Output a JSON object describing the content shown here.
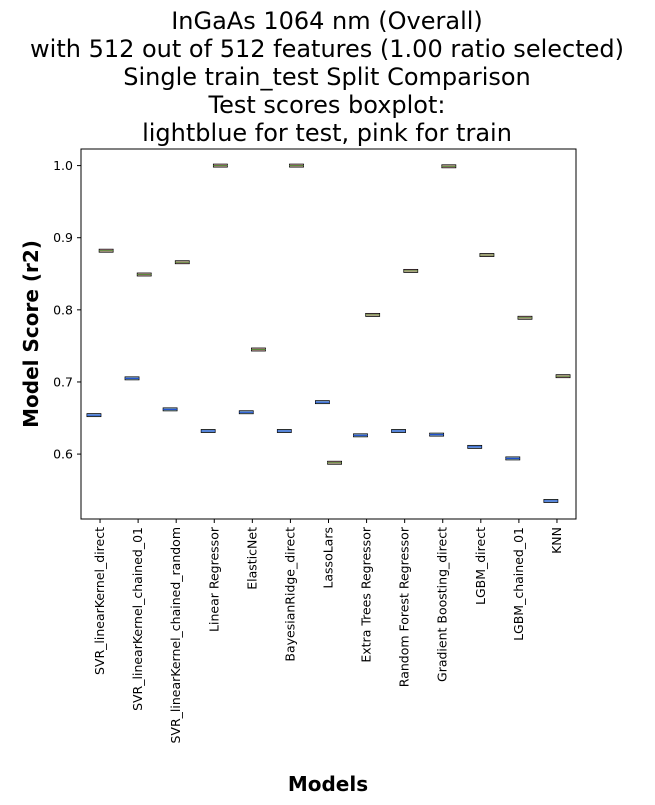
{
  "chart_data": {
    "type": "boxplot",
    "title_lines": [
      "InGaAs 1064 nm (Overall)",
      "with 512 out of 512 features (1.00 ratio selected)",
      "Single train_test Split Comparison",
      "Test scores boxplot:",
      "lightblue for test, pink for train"
    ],
    "xlabel": "Models",
    "ylabel": "Model Score (r2)",
    "ylim": [
      0.51,
      1.023
    ],
    "yticks": [
      0.6,
      0.7,
      0.8,
      0.9,
      1.0
    ],
    "ytick_labels": [
      "0.6",
      "0.7",
      "0.8",
      "0.9",
      "1.0"
    ],
    "categories": [
      "SVR_linearKernel_direct",
      "SVR_linearKernel_chained_01",
      "SVR_linearKernel_chained_random",
      "Linear Regressor",
      "ElasticNet",
      "BayesianRidge_direct",
      "LassoLars",
      "Extra Trees Regressor",
      "Random Forest Regressor",
      "Gradient Boosting_direct",
      "LGBM_direct",
      "LGBM_chained_01",
      "KNN"
    ],
    "series": [
      {
        "name": "test",
        "color": "#add8e6",
        "median_color": "#1f4fcf",
        "values": [
          0.654,
          0.705,
          0.662,
          0.632,
          0.658,
          0.632,
          0.672,
          0.626,
          0.632,
          0.627,
          0.61,
          0.594,
          0.535
        ]
      },
      {
        "name": "train",
        "color": "#ffc0cb",
        "median_color": "#5a8a3a",
        "values": [
          0.882,
          0.849,
          0.866,
          1.0,
          0.745,
          1.0,
          0.588,
          0.793,
          0.854,
          0.999,
          0.876,
          0.789,
          0.708
        ]
      }
    ],
    "legend": "none",
    "grid": false
  }
}
